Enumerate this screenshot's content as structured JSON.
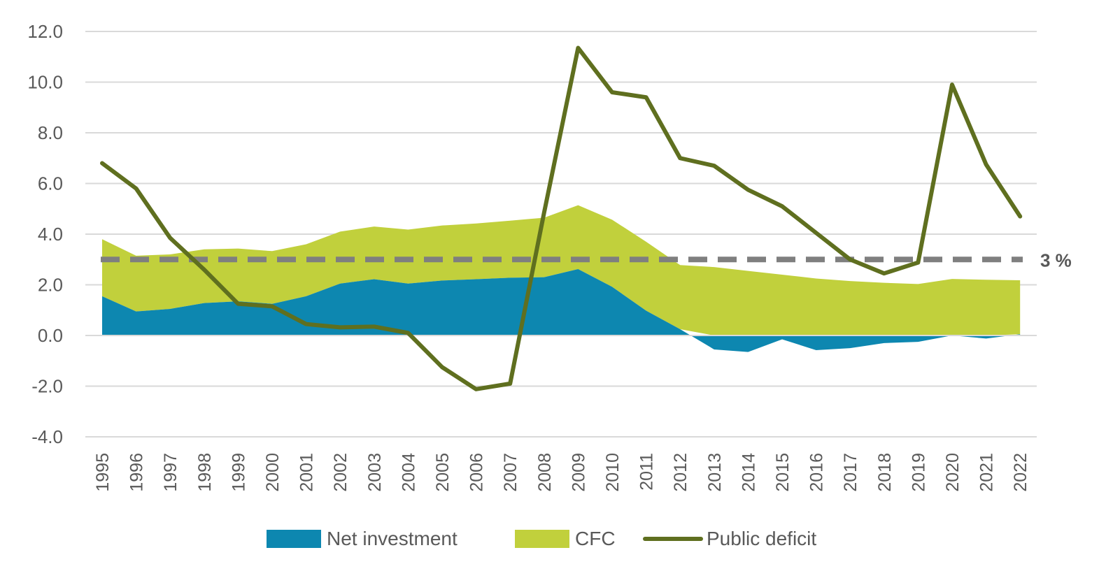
{
  "chart_data": {
    "type": "area",
    "categories": [
      "1995",
      "1996",
      "1997",
      "1998",
      "1999",
      "2000",
      "2001",
      "2002",
      "2003",
      "2004",
      "2005",
      "2006",
      "2007",
      "2008",
      "2009",
      "2010",
      "2011",
      "2012",
      "2013",
      "2014",
      "2015",
      "2016",
      "2017",
      "2018",
      "2019",
      "2020",
      "2021",
      "2022"
    ],
    "series": [
      {
        "name": "Net investment",
        "type": "area",
        "color": "#0d87b0",
        "values": [
          1.55,
          0.95,
          1.05,
          1.28,
          1.35,
          1.25,
          1.55,
          2.05,
          2.22,
          2.05,
          2.17,
          2.22,
          2.28,
          2.3,
          2.62,
          1.92,
          0.98,
          0.25,
          -0.55,
          -0.65,
          -0.15,
          -0.58,
          -0.5,
          -0.3,
          -0.25,
          0.0,
          -0.12,
          0.05
        ]
      },
      {
        "name": "CFC",
        "type": "area",
        "color": "#c1d03c",
        "values": [
          2.25,
          2.2,
          2.15,
          2.12,
          2.08,
          2.08,
          2.05,
          2.05,
          2.08,
          2.13,
          2.17,
          2.2,
          2.25,
          2.35,
          2.52,
          2.65,
          2.72,
          2.53,
          2.7,
          2.55,
          2.4,
          2.25,
          2.15,
          2.08,
          2.03,
          2.23,
          2.2,
          2.13
        ]
      },
      {
        "name": "Public deficit",
        "type": "line",
        "color": "#5f6f1f",
        "values": [
          6.8,
          5.8,
          3.85,
          2.6,
          1.25,
          1.15,
          0.45,
          0.32,
          0.35,
          0.1,
          -1.25,
          -2.12,
          -1.9,
          4.85,
          11.35,
          9.6,
          9.4,
          7.0,
          6.7,
          5.75,
          5.1,
          4.05,
          3.0,
          2.45,
          2.88,
          9.9,
          6.75,
          4.7
        ]
      }
    ],
    "reference_line": {
      "value": 3,
      "label": "3 %",
      "color": "#7f7f7f",
      "style": "dashed"
    },
    "ylim": [
      -4,
      12
    ],
    "yticks": [
      "12.0",
      "10.0",
      "8.0",
      "6.0",
      "4.0",
      "2.0",
      "0.0",
      "-2.0",
      "-4.0"
    ],
    "ytick_values": [
      12,
      10,
      8,
      6,
      4,
      2,
      0,
      -2,
      -4
    ],
    "grid": true,
    "legend_position": "bottom",
    "title": "",
    "xlabel": "",
    "ylabel": ""
  }
}
